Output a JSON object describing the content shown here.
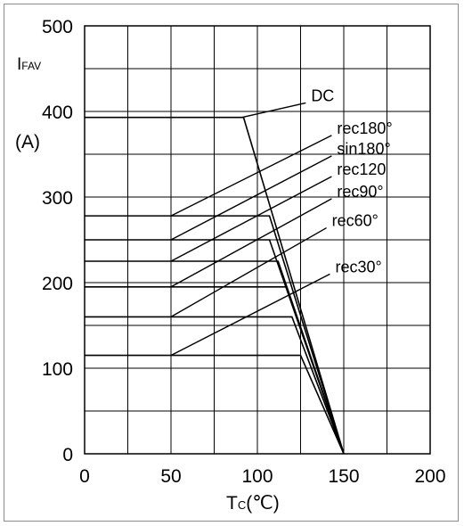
{
  "chart_data": {
    "type": "line",
    "ylabel_main": "I",
    "ylabel_sub": "FAV",
    "yunit": "(A)",
    "xlabel_main": "T",
    "xlabel_sub": "C",
    "xunit": "(℃)",
    "xlim": [
      0,
      200
    ],
    "ylim": [
      0,
      500
    ],
    "x_ticks": [
      0,
      50,
      100,
      150,
      200
    ],
    "y_ticks": [
      0,
      100,
      200,
      300,
      400,
      500
    ],
    "x_tick_labels": [
      "0",
      "50",
      "100",
      "150",
      "200"
    ],
    "y_tick_labels": [
      "0",
      "100",
      "200",
      "300",
      "400",
      "500"
    ],
    "grid": true,
    "series": [
      {
        "name": "DC",
        "points": [
          [
            0,
            393
          ],
          [
            92,
            393
          ],
          [
            150,
            0
          ]
        ],
        "label_at": [
          128,
          410
        ],
        "line_from": [
          91,
          393
        ]
      },
      {
        "name": "rec180°",
        "points": [
          [
            0,
            278
          ],
          [
            107,
            278
          ],
          [
            150,
            0
          ]
        ],
        "label_at": [
          143,
          372
        ],
        "line_from": [
          50,
          278
        ]
      },
      {
        "name": "sin180°",
        "points": [
          [
            0,
            250
          ],
          [
            107,
            250
          ],
          [
            150,
            0
          ]
        ],
        "label_at": [
          143,
          348
        ],
        "line_from": [
          50,
          250
        ]
      },
      {
        "name": "rec120",
        "points": [
          [
            0,
            225
          ],
          [
            112,
            225
          ],
          [
            150,
            0
          ]
        ],
        "label_at": [
          143,
          324
        ],
        "line_from": [
          50,
          225
        ]
      },
      {
        "name": "rec90°",
        "points": [
          [
            0,
            195
          ],
          [
            117,
            195
          ],
          [
            150,
            0
          ]
        ],
        "label_at": [
          143,
          298
        ],
        "line_from": [
          50,
          195
        ]
      },
      {
        "name": "rec60°",
        "points": [
          [
            0,
            160
          ],
          [
            120,
            160
          ],
          [
            150,
            0
          ]
        ],
        "label_at": [
          140,
          264
        ],
        "line_from": [
          50,
          160
        ]
      },
      {
        "name": "rec30°",
        "points": [
          [
            0,
            115
          ],
          [
            125,
            115
          ],
          [
            150,
            0
          ]
        ],
        "label_at": [
          142,
          210
        ],
        "line_from": [
          50,
          115
        ]
      }
    ]
  }
}
